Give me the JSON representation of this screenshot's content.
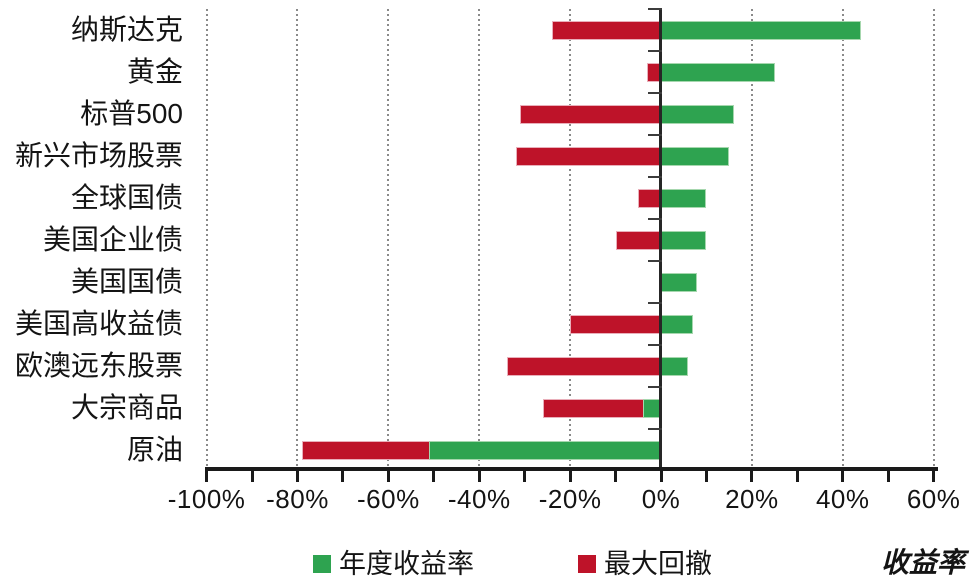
{
  "chart_data": {
    "type": "bar",
    "orientation": "horizontal",
    "axis_title": "收益率",
    "categories": [
      "纳斯达克",
      "黄金",
      "标普500",
      "新兴市场股票",
      "全球国债",
      "美国企业债",
      "美国国债",
      "美国高收益债",
      "欧澳远东股票",
      "大宗商品",
      "原油"
    ],
    "series": [
      {
        "name": "年度收益率",
        "color": "#2EA350",
        "border_color": "#A6D7AE",
        "values": [
          44,
          25,
          16,
          15,
          10,
          10,
          8,
          7,
          6,
          -4,
          -51
        ]
      },
      {
        "name": "最大回撤",
        "color": "#BE1329",
        "border_color": "#E9AFBA",
        "values": [
          -24,
          -3,
          -31,
          -32,
          -5,
          -10,
          0,
          -20,
          -34,
          -26,
          -79
        ]
      }
    ],
    "x_axis": {
      "min": -100,
      "max": 60,
      "major_tick_step": 20,
      "minor_tick_step": 10,
      "unit": "%",
      "tick_labels": [
        "-100%",
        "-80%",
        "-60%",
        "-40%",
        "-20%",
        "0%",
        "20%",
        "40%",
        "60%"
      ],
      "gridlines": "dotted vertical at every 20%"
    },
    "legend": {
      "position": "bottom",
      "items": [
        "年度收益率",
        "最大回撤"
      ]
    }
  }
}
